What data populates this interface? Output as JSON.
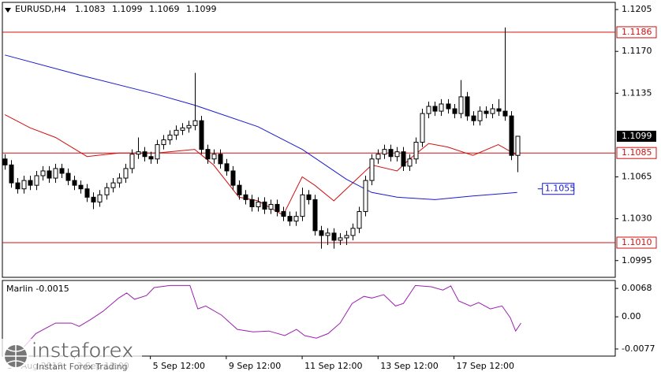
{
  "chart_data": {
    "type": "candlestick",
    "header_symbol": "EURUSD,H4",
    "header_ohlc": [
      1.1083,
      1.1099,
      1.1069,
      1.1099
    ],
    "candles": {
      "open": [
        1.108,
        1.1075,
        1.106,
        1.1055,
        1.1062,
        1.1058,
        1.1066,
        1.107,
        1.1064,
        1.1072,
        1.1068,
        1.1062,
        1.1058,
        1.1055,
        1.1048,
        1.1044,
        1.105,
        1.1056,
        1.106,
        1.1064,
        1.1072,
        1.1084,
        1.1086,
        1.1082,
        1.108,
        1.1092,
        1.1096,
        1.11,
        1.1104,
        1.1106,
        1.1108,
        1.1112,
        1.1088,
        1.108,
        1.1084,
        1.1076,
        1.107,
        1.1058,
        1.105,
        1.1046,
        1.104,
        1.1044,
        1.1038,
        1.1042,
        1.1036,
        1.1032,
        1.1028,
        1.1032,
        1.105,
        1.1046,
        1.102,
        1.1016,
        1.1018,
        1.1012,
        1.1014,
        1.1016,
        1.1022,
        1.1036,
        1.1062,
        1.108,
        1.1084,
        1.1088,
        1.1082,
        1.1086,
        1.1074,
        1.108,
        1.1094,
        1.1118,
        1.1124,
        1.112,
        1.1126,
        1.1122,
        1.1118,
        1.1132,
        1.1116,
        1.1112,
        1.112,
        1.1118,
        1.1122,
        1.112,
        1.1116,
        1.1083
      ],
      "high": [
        1.1084,
        1.1079,
        1.1064,
        1.1066,
        1.1066,
        1.107,
        1.1074,
        1.1074,
        1.1076,
        1.1076,
        1.1072,
        1.1066,
        1.1062,
        1.1059,
        1.1052,
        1.1054,
        1.106,
        1.1064,
        1.1068,
        1.1076,
        1.1088,
        1.1098,
        1.109,
        1.1086,
        1.1096,
        1.11,
        1.1104,
        1.1108,
        1.111,
        1.1112,
        1.1152,
        1.1116,
        1.1092,
        1.1088,
        1.1088,
        1.108,
        1.1074,
        1.1062,
        1.1054,
        1.105,
        1.1048,
        1.1048,
        1.1046,
        1.1046,
        1.104,
        1.1036,
        1.1036,
        1.1056,
        1.1054,
        1.105,
        1.1024,
        1.1022,
        1.1022,
        1.1018,
        1.102,
        1.1026,
        1.104,
        1.1066,
        1.1084,
        1.1088,
        1.1092,
        1.1092,
        1.109,
        1.109,
        1.1084,
        1.1098,
        1.1122,
        1.1128,
        1.1128,
        1.113,
        1.113,
        1.1126,
        1.1146,
        1.1136,
        1.112,
        1.1124,
        1.1124,
        1.1126,
        1.113,
        1.119,
        1.112,
        1.1099
      ],
      "low": [
        1.1071,
        1.1056,
        1.1051,
        1.1051,
        1.1054,
        1.1054,
        1.1062,
        1.106,
        1.106,
        1.1064,
        1.1058,
        1.1054,
        1.1051,
        1.1044,
        1.1038,
        1.104,
        1.1046,
        1.1052,
        1.1056,
        1.106,
        1.1068,
        1.108,
        1.1078,
        1.1076,
        1.1076,
        1.1088,
        1.1092,
        1.1096,
        1.11,
        1.1102,
        1.1104,
        1.1084,
        1.1076,
        1.1076,
        1.1072,
        1.1066,
        1.1054,
        1.1046,
        1.1042,
        1.1036,
        1.1036,
        1.1034,
        1.1034,
        1.1032,
        1.1028,
        1.1024,
        1.1024,
        1.1028,
        1.1042,
        1.1016,
        1.1005,
        1.1008,
        1.1005,
        1.1008,
        1.1008,
        1.1012,
        1.1018,
        1.1032,
        1.1058,
        1.1076,
        1.108,
        1.1078,
        1.1078,
        1.107,
        1.107,
        1.1076,
        1.109,
        1.1114,
        1.1116,
        1.1116,
        1.1118,
        1.1114,
        1.1114,
        1.1112,
        1.1108,
        1.1108,
        1.1114,
        1.1114,
        1.1116,
        1.1112,
        1.1079,
        1.1069
      ],
      "close": [
        1.1075,
        1.106,
        1.1055,
        1.1062,
        1.1058,
        1.1066,
        1.107,
        1.1064,
        1.1072,
        1.1068,
        1.1062,
        1.1058,
        1.1055,
        1.1048,
        1.1044,
        1.105,
        1.1056,
        1.106,
        1.1064,
        1.1072,
        1.1084,
        1.1086,
        1.1082,
        1.108,
        1.1092,
        1.1096,
        1.11,
        1.1104,
        1.1106,
        1.1108,
        1.1112,
        1.1088,
        1.108,
        1.1084,
        1.1076,
        1.107,
        1.1058,
        1.105,
        1.1046,
        1.104,
        1.1044,
        1.1038,
        1.1042,
        1.1036,
        1.1032,
        1.1028,
        1.1032,
        1.105,
        1.1046,
        1.102,
        1.1016,
        1.1018,
        1.1012,
        1.1014,
        1.1016,
        1.1022,
        1.1036,
        1.1062,
        1.108,
        1.1084,
        1.1088,
        1.1082,
        1.1086,
        1.1074,
        1.108,
        1.1094,
        1.1118,
        1.1124,
        1.112,
        1.1126,
        1.1122,
        1.1118,
        1.1132,
        1.1116,
        1.1112,
        1.112,
        1.1118,
        1.1122,
        1.112,
        1.1116,
        1.1083,
        1.1099
      ]
    },
    "series": [
      {
        "color": "#d01010",
        "x": [
          0,
          4,
          8,
          13,
          18,
          24,
          30,
          33,
          37,
          40,
          44,
          47,
          49,
          52,
          54,
          58,
          62,
          64,
          67,
          70,
          74,
          78,
          81
        ],
        "values": [
          1.1117,
          1.1106,
          1.1098,
          1.1082,
          1.1085,
          1.1085,
          1.1088,
          1.1075,
          1.1048,
          1.1045,
          1.1033,
          1.1065,
          1.1058,
          1.1045,
          1.1055,
          1.1075,
          1.107,
          1.108,
          1.1093,
          1.109,
          1.1083,
          1.1092,
          1.1083
        ]
      },
      {
        "color": "#1a1ad0",
        "x": [
          0,
          12,
          24,
          30,
          40,
          47,
          54,
          58,
          62,
          68,
          74,
          81
        ],
        "values": [
          1.1167,
          1.115,
          1.1134,
          1.1125,
          1.1107,
          1.1088,
          1.1063,
          1.1052,
          1.1048,
          1.1046,
          1.1049,
          1.1052
        ],
        "label_value": 1.1055
      }
    ],
    "levels": [
      1.1186,
      1.1085,
      {
        "value": 1.101,
        "label": "1.1010"
      }
    ],
    "level_color": "#d01010",
    "last_price": 1.1099,
    "ylim": [
      1.0981,
      1.1211
    ],
    "yticks": [
      1.1205,
      {
        "value": 1.117,
        "label": "1.1170"
      },
      1.1135,
      1.1065,
      {
        "value": 1.103,
        "label": "1.1030"
      },
      1.0995
    ],
    "xlim": [
      -0.4,
      96.5
    ],
    "xticks": [
      {
        "value": 0,
        "label": "30 Aug 2019"
      },
      {
        "value": 11,
        "label": "3 Sep 12:00"
      },
      {
        "value": 23,
        "label": "5 Sep 12:00"
      },
      {
        "value": 35,
        "label": "9 Sep 12:00"
      },
      {
        "value": 47,
        "label": "11 Sep 12:00"
      },
      {
        "value": 59,
        "label": "13 Sep 12:00"
      },
      {
        "value": 71,
        "label": "17 Sep 12:00"
      }
    ],
    "indicator": {
      "title": "Marlin -0.0015",
      "color": "#9b1fb0",
      "x": [
        3,
        4.9,
        6.75,
        8,
        10.5,
        11.75,
        13.6,
        15.5,
        18,
        19.25,
        20.5,
        22.4,
        23.6,
        26.1,
        29.25,
        30.5,
        31.75,
        34.25,
        36.75,
        39.25,
        41.75,
        44.25,
        46.1,
        47.4,
        49.25,
        51.1,
        53,
        54.9,
        56.75,
        58,
        59.9,
        61.75,
        63,
        64.9,
        67.4,
        69.25,
        70.5,
        71.75,
        73.6,
        74.9,
        76.75,
        78.6,
        79.9,
        80.75,
        81.6
      ],
      "values": [
        -0.0072,
        -0.004,
        -0.0025,
        -0.0015,
        -0.0015,
        -0.0023,
        -0.0006,
        0.0013,
        0.0045,
        0.0057,
        0.0042,
        0.0051,
        0.007,
        0.0075,
        0.0075,
        0.0019,
        0.0026,
        0.0004,
        -0.003,
        -0.0036,
        -0.0034,
        -0.0045,
        -0.003,
        -0.0045,
        -0.0051,
        -0.004,
        -0.0015,
        0.0032,
        0.0049,
        0.0045,
        0.0053,
        0.0026,
        0.0032,
        0.0075,
        0.0072,
        0.0064,
        0.0074,
        0.0038,
        0.0026,
        0.0034,
        0.0019,
        0.0026,
        -0.0002,
        -0.0034,
        -0.0015
      ],
      "ylim": [
        -0.0094,
        0.0087
      ],
      "yticks": [
        0.0068,
        {
          "value": 0,
          "label": "0.00"
        },
        -0.0077
      ]
    },
    "watermark": {
      "name": "instaforex",
      "tagline": "Instant Forex Trading"
    }
  }
}
